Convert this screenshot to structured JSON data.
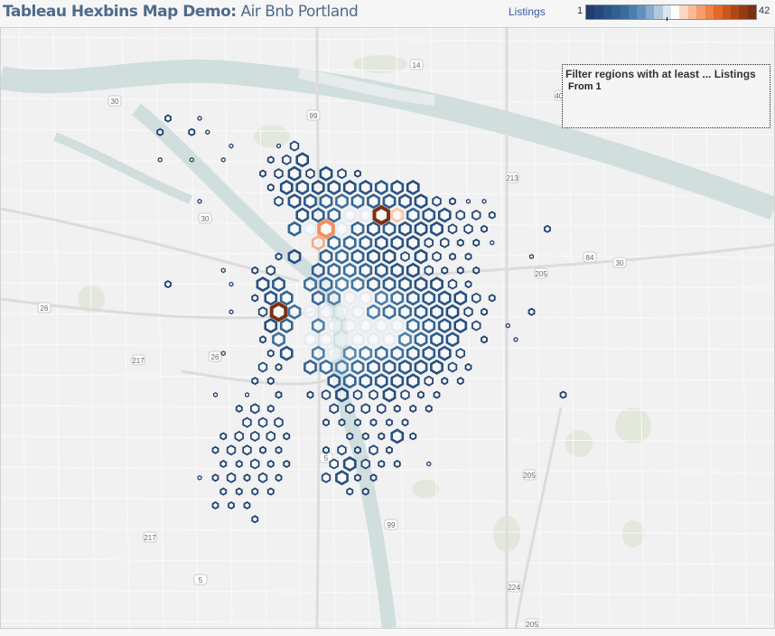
{
  "header": {
    "title_bold": "Tableau Hexbins Map Demo:",
    "title_rest": "Air Bnb Portland"
  },
  "legend": {
    "label": "Listings",
    "min": "1",
    "max": "42",
    "colors": [
      "#1f3e6c",
      "#24497a",
      "#2a5587",
      "#306192",
      "#3a6d9c",
      "#4c7eab",
      "#6391bb",
      "#86abcc",
      "#b2c8dc",
      "#dbe5ee",
      "#ffffff",
      "#fdd6c1",
      "#fbb895",
      "#f69c6d",
      "#ef8145",
      "#e2692a",
      "#c9561c",
      "#ad4716",
      "#933b13",
      "#7b3012"
    ]
  },
  "filter": {
    "title": "Filter regions with at least ... Listings",
    "value": "From 1"
  },
  "map": {
    "colors": {
      "land": "#f1f1f1",
      "water": "#d1dede",
      "road": "#ffffff",
      "park": "#e2e8dc"
    },
    "road_labels": [
      "14",
      "14",
      "99",
      "30",
      "30",
      "213",
      "205",
      "84",
      "30",
      "26",
      "217",
      "26",
      "5",
      "217",
      "99",
      "205",
      "5",
      "224",
      "205",
      "405"
    ],
    "hexbin_listings": [
      [
        0,
        0,
        2,
        0,
        1,
        0,
        0,
        0,
        0,
        0,
        0,
        0,
        0,
        0,
        0,
        0,
        0,
        0,
        0,
        0,
        0,
        0,
        0,
        0,
        0,
        0,
        0,
        0
      ],
      [
        0,
        2,
        0,
        2,
        1,
        0,
        0,
        0,
        0,
        0,
        0,
        0,
        0,
        0,
        0,
        0,
        0,
        0,
        0,
        0,
        0,
        0,
        0,
        0,
        0,
        0,
        0,
        0
      ],
      [
        0,
        0,
        0,
        0,
        0,
        0,
        1,
        0,
        0,
        1,
        3,
        0,
        0,
        0,
        0,
        0,
        0,
        0,
        0,
        0,
        0,
        0,
        0,
        0,
        0,
        0,
        0,
        0
      ],
      [
        0,
        1,
        0,
        1,
        0,
        1,
        0,
        0,
        2,
        3,
        4,
        0,
        0,
        0,
        0,
        0,
        0,
        0,
        0,
        0,
        0,
        0,
        0,
        0,
        0,
        0,
        0,
        0
      ],
      [
        0,
        0,
        0,
        0,
        0,
        0,
        0,
        0,
        2,
        3,
        4,
        3,
        4,
        3,
        2,
        0,
        0,
        0,
        0,
        0,
        0,
        0,
        0,
        0,
        0,
        0,
        0,
        0
      ],
      [
        0,
        0,
        0,
        0,
        0,
        0,
        0,
        0,
        2,
        4,
        5,
        4,
        5,
        4,
        5,
        6,
        5,
        4,
        0,
        0,
        0,
        0,
        0,
        0,
        0,
        0,
        0,
        0
      ],
      [
        0,
        0,
        0,
        0,
        1,
        0,
        0,
        0,
        0,
        3,
        5,
        6,
        8,
        10,
        9,
        7,
        6,
        5,
        4,
        3,
        2,
        1,
        1,
        0,
        0,
        0,
        0,
        0
      ],
      [
        0,
        0,
        0,
        0,
        0,
        0,
        0,
        0,
        0,
        0,
        5,
        7,
        9,
        14,
        20,
        42,
        26,
        8,
        6,
        5,
        3,
        3,
        2,
        0,
        0,
        0,
        0,
        0
      ],
      [
        0,
        0,
        0,
        0,
        0,
        0,
        0,
        0,
        0,
        0,
        8,
        20,
        30,
        18,
        9,
        6,
        7,
        5,
        4,
        4,
        3,
        3,
        2,
        0,
        0,
        0,
        2,
        0
      ],
      [
        0,
        0,
        0,
        0,
        0,
        0,
        0,
        0,
        0,
        0,
        0,
        28,
        10,
        9,
        8,
        6,
        5,
        4,
        3,
        3,
        2,
        2,
        1,
        0,
        0,
        0,
        0,
        0
      ],
      [
        0,
        0,
        0,
        0,
        0,
        0,
        0,
        0,
        0,
        2,
        4,
        0,
        8,
        9,
        7,
        5,
        4,
        3,
        4,
        3,
        2,
        2,
        0,
        0,
        0,
        1,
        0,
        0
      ],
      [
        0,
        0,
        0,
        0,
        0,
        1,
        0,
        2,
        3,
        0,
        0,
        7,
        9,
        10,
        8,
        6,
        5,
        4,
        3,
        2,
        2,
        2,
        0,
        0,
        0,
        0,
        0,
        0
      ],
      [
        0,
        0,
        2,
        0,
        0,
        0,
        1,
        0,
        4,
        6,
        0,
        10,
        9,
        12,
        11,
        8,
        7,
        6,
        5,
        4,
        3,
        2,
        0,
        0,
        0,
        0,
        0,
        0
      ],
      [
        0,
        0,
        0,
        0,
        0,
        0,
        0,
        2,
        5,
        8,
        0,
        9,
        12,
        14,
        16,
        12,
        10,
        8,
        6,
        5,
        4,
        3,
        2,
        0,
        0,
        0,
        0,
        0
      ],
      [
        0,
        0,
        0,
        0,
        0,
        0,
        1,
        0,
        3,
        42,
        10,
        14,
        16,
        15,
        14,
        12,
        10,
        9,
        7,
        5,
        4,
        3,
        2,
        0,
        0,
        2,
        0,
        0
      ],
      [
        0,
        0,
        0,
        0,
        0,
        0,
        0,
        0,
        4,
        8,
        0,
        12,
        16,
        16,
        16,
        16,
        14,
        10,
        8,
        6,
        4,
        3,
        0,
        1,
        0,
        0,
        0,
        0
      ],
      [
        0,
        0,
        0,
        0,
        0,
        0,
        0,
        0,
        2,
        10,
        0,
        14,
        16,
        16,
        16,
        16,
        15,
        12,
        8,
        6,
        5,
        0,
        2,
        0,
        1,
        0,
        0,
        0
      ],
      [
        0,
        0,
        0,
        0,
        0,
        1,
        0,
        0,
        2,
        5,
        0,
        12,
        14,
        13,
        12,
        10,
        10,
        8,
        6,
        5,
        3,
        0,
        0,
        0,
        0,
        0,
        0,
        0
      ],
      [
        0,
        0,
        0,
        0,
        0,
        0,
        0,
        0,
        3,
        2,
        0,
        8,
        10,
        12,
        10,
        8,
        7,
        6,
        5,
        4,
        3,
        2,
        0,
        0,
        0,
        0,
        0,
        0
      ],
      [
        0,
        0,
        0,
        0,
        0,
        0,
        0,
        2,
        2,
        0,
        0,
        0,
        6,
        8,
        7,
        6,
        5,
        4,
        3,
        2,
        2,
        0,
        0,
        0,
        0,
        0,
        0,
        0
      ],
      [
        0,
        0,
        0,
        0,
        0,
        1,
        0,
        1,
        0,
        2,
        0,
        2,
        3,
        4,
        3,
        3,
        4,
        3,
        2,
        2,
        0,
        0,
        0,
        0,
        0,
        0,
        0,
        2
      ],
      [
        0,
        0,
        0,
        0,
        0,
        0,
        2,
        3,
        2,
        0,
        0,
        0,
        3,
        3,
        3,
        3,
        2,
        2,
        2,
        0,
        0,
        0,
        0,
        0,
        0,
        0,
        0,
        0
      ],
      [
        0,
        0,
        0,
        0,
        0,
        0,
        0,
        3,
        3,
        3,
        0,
        0,
        2,
        2,
        2,
        2,
        2,
        2,
        0,
        0,
        0,
        0,
        0,
        0,
        0,
        0,
        0,
        0
      ],
      [
        0,
        0,
        0,
        0,
        0,
        2,
        3,
        3,
        3,
        2,
        0,
        0,
        0,
        2,
        2,
        2,
        4,
        2,
        0,
        0,
        0,
        0,
        0,
        0,
        0,
        0,
        0,
        0
      ],
      [
        0,
        0,
        0,
        0,
        0,
        2,
        3,
        3,
        2,
        2,
        0,
        0,
        2,
        3,
        2,
        3,
        2,
        0,
        0,
        0,
        0,
        0,
        0,
        0,
        0,
        0,
        0,
        0
      ],
      [
        0,
        0,
        0,
        0,
        0,
        2,
        2,
        3,
        2,
        2,
        0,
        0,
        3,
        4,
        3,
        2,
        2,
        0,
        1,
        0,
        0,
        0,
        0,
        0,
        0,
        0,
        0,
        0
      ],
      [
        0,
        0,
        0,
        0,
        1,
        2,
        3,
        2,
        3,
        2,
        0,
        0,
        3,
        4,
        2,
        2,
        0,
        0,
        0,
        0,
        0,
        0,
        0,
        0,
        0,
        0,
        0,
        0
      ],
      [
        0,
        0,
        0,
        0,
        0,
        2,
        2,
        2,
        2,
        0,
        0,
        0,
        0,
        2,
        2,
        0,
        0,
        0,
        0,
        0,
        0,
        0,
        0,
        0,
        0,
        0,
        0,
        0
      ],
      [
        0,
        0,
        0,
        0,
        0,
        2,
        2,
        2,
        0,
        0,
        0,
        0,
        0,
        0,
        0,
        0,
        0,
        0,
        0,
        0,
        0,
        0,
        0,
        0,
        0,
        0,
        0,
        0
      ],
      [
        0,
        0,
        0,
        0,
        0,
        0,
        0,
        2,
        0,
        0,
        0,
        0,
        0,
        0,
        0,
        0,
        0,
        0,
        0,
        0,
        0,
        0,
        0,
        0,
        0,
        0,
        0,
        0
      ]
    ]
  }
}
